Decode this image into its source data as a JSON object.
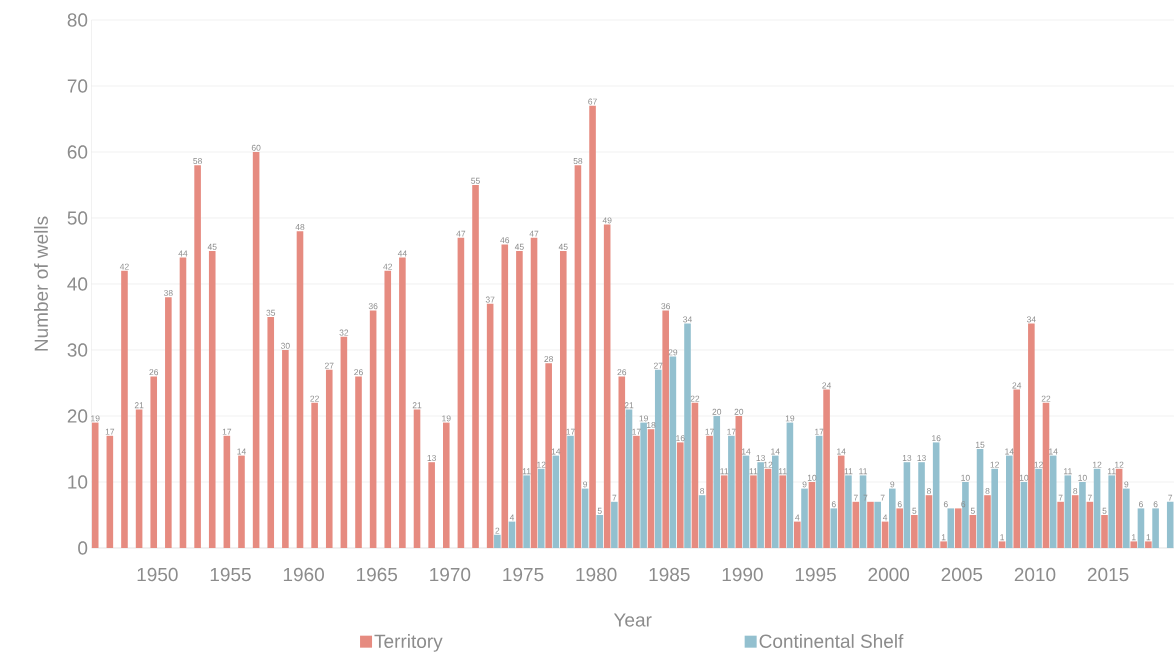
{
  "chart_data": {
    "type": "bar",
    "xlabel": "Year",
    "ylabel": "Number of wells",
    "categories": [
      null,
      null,
      null,
      null,
      "1950",
      null,
      null,
      null,
      null,
      "1955",
      null,
      null,
      null,
      null,
      "1960",
      null,
      null,
      null,
      null,
      "1965",
      null,
      null,
      null,
      null,
      "1970",
      null,
      null,
      null,
      null,
      "1975",
      null,
      null,
      null,
      null,
      "1980",
      null,
      null,
      null,
      null,
      "1985",
      null,
      null,
      null,
      null,
      "1990",
      null,
      null,
      null,
      null,
      "1995",
      null,
      null,
      null,
      null,
      "2000",
      null,
      null,
      null,
      null,
      "2005",
      null,
      null,
      null,
      null,
      "2010",
      null,
      null,
      null,
      null,
      "2015",
      null,
      null,
      null,
      null
    ],
    "series": [
      {
        "name": "Territory",
        "color": "#e68b80",
        "values": [
          19,
          17,
          42,
          21,
          26,
          38,
          44,
          58,
          45,
          17,
          14,
          60,
          35,
          30,
          48,
          22,
          27,
          32,
          26,
          36,
          42,
          44,
          21,
          13,
          19,
          47,
          55,
          37,
          46,
          45,
          47,
          28,
          45,
          58,
          67,
          49,
          26,
          17,
          18,
          36,
          16,
          22,
          17,
          11,
          20,
          11,
          12,
          11,
          4,
          10,
          24,
          14,
          7,
          7,
          4,
          6,
          5,
          8,
          1,
          6,
          5,
          8,
          1,
          24,
          34,
          22,
          7,
          8,
          7,
          5,
          12,
          1,
          1,
          null
        ]
      },
      {
        "name": "Continental Shelf",
        "color": "#93c0cf",
        "values": [
          null,
          null,
          null,
          null,
          null,
          null,
          null,
          null,
          null,
          null,
          null,
          null,
          null,
          null,
          null,
          null,
          null,
          null,
          null,
          null,
          null,
          null,
          null,
          null,
          null,
          null,
          null,
          2,
          4,
          11,
          12,
          14,
          17,
          9,
          5,
          7,
          21,
          19,
          27,
          29,
          34,
          8,
          20,
          17,
          14,
          13,
          14,
          19,
          9,
          17,
          6,
          11,
          11,
          7,
          9,
          13,
          13,
          16,
          6,
          10,
          15,
          12,
          14,
          10,
          12,
          14,
          11,
          10,
          12,
          11,
          9,
          6,
          6,
          7
        ]
      }
    ],
    "ylim": [
      0,
      80
    ],
    "yticks": [
      0,
      10,
      20,
      30,
      40,
      50,
      60,
      70,
      80
    ],
    "grid": "y",
    "legend": "bottom",
    "data_labels": true
  }
}
